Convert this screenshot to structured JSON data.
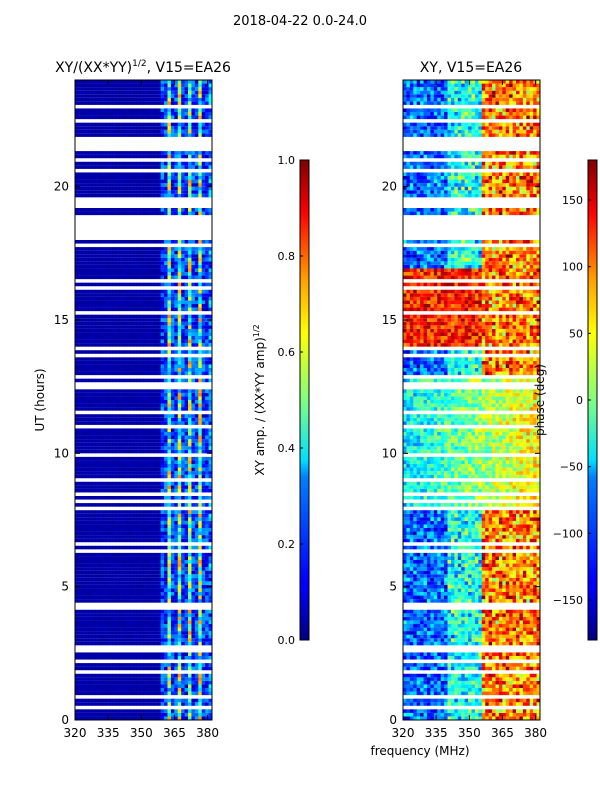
{
  "figure": {
    "suptitle": "2018-04-22 0.0-24.0",
    "shared_xlabel": "frequency (MHz)"
  },
  "chart_data": [
    {
      "type": "heatmap",
      "title": "XY/(XX*YY)",
      "title_superscript": "1/2",
      "title_suffix": ", V15=EA26",
      "xlabel": "",
      "ylabel": "UT (hours)",
      "xlim": [
        320,
        382
      ],
      "ylim": [
        0,
        24
      ],
      "xticks": [
        320,
        335,
        350,
        365,
        380
      ],
      "yticks": [
        0,
        5,
        10,
        15,
        20
      ],
      "colormap": "jet",
      "colorbar": {
        "label": "XY amp. / (XX*YY amp)",
        "label_superscript": "1/2",
        "vmin": 0.0,
        "vmax": 1.0,
        "ticks": [
          "0.0",
          "0.2",
          "0.4",
          "0.6",
          "0.8",
          "1.0"
        ]
      },
      "description_values": {
        "background_level": 0.02,
        "band_320_359": 0.03,
        "band_359_382": 0.45
      }
    },
    {
      "type": "heatmap",
      "title": "XY, V15=EA26",
      "xlabel": "frequency (MHz)",
      "ylabel": "",
      "xlim": [
        320,
        382
      ],
      "ylim": [
        0,
        24
      ],
      "xticks": [
        320,
        335,
        350,
        365,
        380
      ],
      "yticks": [
        0,
        5,
        10,
        15,
        20
      ],
      "colormap": "jet",
      "colorbar": {
        "label": "phase (deg)",
        "vmin": -180,
        "vmax": 180,
        "ticks": [
          "−150",
          "−100",
          "−50",
          "0",
          "50",
          "100",
          "150"
        ]
      }
    }
  ],
  "colors": {
    "jet_dark_blue": "#00007f",
    "jet_blue": "#0000ff",
    "jet_cyan": "#00ffff",
    "jet_yellow": "#ffff00",
    "jet_red": "#ff0000",
    "jet_dark_red": "#7f0000"
  }
}
